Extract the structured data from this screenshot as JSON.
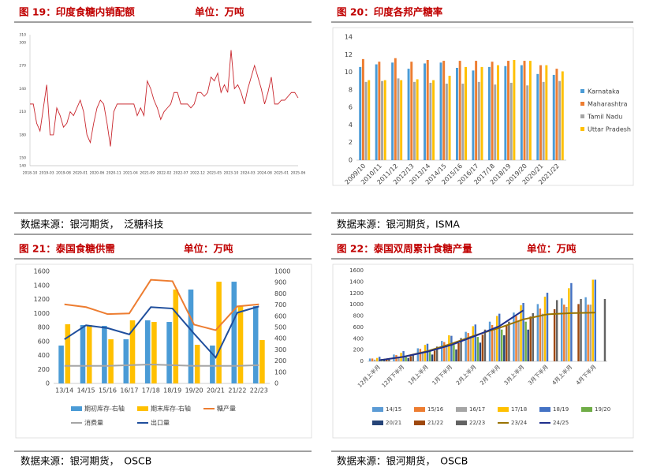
{
  "chart_data": [
    {
      "type": "line",
      "title": "图 19：印度食糖内销配额",
      "subtitle": "单位：万吨",
      "source": "数据来源：银河期货，　泛糖科技",
      "color": "#c9272e",
      "categories": [
        "2018-10",
        null,
        null,
        null,
        null,
        "2019-03",
        null,
        null,
        null,
        null,
        "2019-08",
        null,
        null,
        null,
        null,
        "2020-01",
        null,
        null,
        null,
        null,
        "2020-06",
        null,
        null,
        null,
        null,
        "2020-11",
        null,
        null,
        null,
        null,
        "2021-04",
        null,
        null,
        null,
        null,
        "2021-09",
        null,
        null,
        null,
        null,
        "2022-02",
        null,
        null,
        null,
        null,
        "2022-07",
        null,
        null,
        null,
        null,
        "2022-12",
        null,
        null,
        null,
        null,
        "2023-05",
        null,
        null,
        null,
        null,
        "2023-10",
        null,
        null,
        null,
        null,
        "2024-03",
        null,
        null,
        null,
        null,
        "2024-08",
        null,
        null,
        null,
        null,
        "2025-01",
        null,
        null,
        null,
        null,
        "2025-06"
      ],
      "values": [
        220,
        220,
        195,
        185,
        215,
        245,
        180,
        180,
        215,
        205,
        190,
        195,
        210,
        205,
        215,
        225,
        210,
        180,
        170,
        195,
        215,
        225,
        220,
        195,
        165,
        210,
        220,
        220,
        220,
        220,
        220,
        220,
        205,
        215,
        205,
        250,
        240,
        225,
        215,
        200,
        210,
        215,
        220,
        235,
        235,
        220,
        220,
        220,
        215,
        220,
        235,
        235,
        230,
        235,
        255,
        250,
        260,
        235,
        245,
        235,
        290,
        240,
        245,
        235,
        220,
        240,
        255,
        270,
        255,
        240,
        220,
        235,
        255,
        220,
        220,
        225,
        225,
        230,
        235,
        235,
        228
      ],
      "ylim": [
        140,
        310
      ],
      "yticks": [
        140,
        150,
        180,
        210,
        240,
        270,
        300,
        310
      ]
    },
    {
      "type": "bar",
      "title": "图 20：印度各邦产糖率",
      "source": "数据来源：银河期货，ISMA",
      "legend": "right",
      "categories": [
        "2009/10",
        "2010/11",
        "2011/12",
        "2012/13",
        "2013/14",
        "2014/15",
        "2015/16",
        "2016/17",
        "2017/18",
        "2018/19",
        "2019/20",
        "2020/21",
        "2021/22"
      ],
      "series": [
        {
          "name": "Karnataka",
          "color": "#4a9bd6",
          "values": [
            10.6,
            10.9,
            11.1,
            10.4,
            11.0,
            11.1,
            10.5,
            10.2,
            10.6,
            10.7,
            10.8,
            9.8,
            9.7
          ]
        },
        {
          "name": "Maharashtra",
          "color": "#ed7d31",
          "values": [
            11.5,
            11.2,
            11.6,
            11.2,
            11.4,
            11.3,
            11.3,
            11.3,
            11.2,
            11.3,
            11.3,
            10.8,
            10.4
          ]
        },
        {
          "name": "Tamil Nadu",
          "color": "#a5a5a5",
          "values": [
            8.9,
            9.0,
            9.3,
            8.9,
            8.8,
            8.7,
            8.7,
            8.9,
            8.6,
            8.8,
            8.5,
            8.9,
            9.0
          ]
        },
        {
          "name": "Uttar Pradesh",
          "color": "#ffc000",
          "values": [
            9.1,
            9.1,
            9.1,
            9.2,
            9.1,
            9.6,
            10.6,
            10.6,
            10.8,
            11.4,
            11.3,
            10.8,
            10.1
          ]
        }
      ],
      "ylim": [
        0,
        14
      ],
      "yticks": [
        0,
        2,
        4,
        6,
        8,
        10,
        12,
        14
      ]
    },
    {
      "type": "combo",
      "title": "图 21：泰国食糖供需",
      "subtitle": "单位：万吨",
      "source": "数据来源：银河期货，　OSCB",
      "legend": "bottom",
      "categories": [
        "13/14",
        "14/15",
        "15/16",
        "16/17",
        "17/18",
        "18/19",
        "19/20",
        "20/21",
        "21/22",
        "22/23"
      ],
      "series": [
        {
          "name": "期初库存-右轴",
          "type": "bar",
          "axis": "y2",
          "color": "#4a9bd6",
          "values": [
            338,
            521,
            514,
            394,
            563,
            549,
            838,
            338,
            908,
            690
          ]
        },
        {
          "name": "期末库存-右轴",
          "type": "bar",
          "axis": "y2",
          "color": "#ffc000",
          "values": [
            528,
            521,
            394,
            563,
            549,
            838,
            345,
            908,
            690,
            387
          ]
        },
        {
          "name": "糖产量",
          "type": "line",
          "color": "#ed7d31",
          "values": [
            1130,
            1090,
            990,
            1000,
            1480,
            1460,
            840,
            760,
            1100,
            1130
          ]
        },
        {
          "name": "消费量",
          "type": "line",
          "color": "#a5a5a5",
          "values": [
            250,
            250,
            250,
            260,
            270,
            260,
            250,
            250,
            250,
            260
          ]
        },
        {
          "name": "出口量",
          "type": "line",
          "color": "#1f4e9c",
          "values": [
            630,
            830,
            790,
            700,
            1090,
            1070,
            710,
            370,
            1010,
            1100
          ]
        }
      ],
      "ylim": [
        0,
        1600
      ],
      "yticks": [
        0,
        200,
        400,
        600,
        800,
        1000,
        1200,
        1400,
        1600
      ],
      "y2lim": [
        0,
        1000
      ],
      "y2ticks": [
        0,
        100,
        200,
        300,
        400,
        500,
        600,
        700,
        800,
        900,
        1000
      ]
    },
    {
      "type": "combo",
      "title": "图 22：泰国双周累计食糖产量",
      "subtitle": "单位：万吨",
      "source": "数据来源：银河期货，　OSCB",
      "legend": "bottom",
      "categories": [
        "12月上半月",
        "12月下半月",
        "1月上半月",
        "1月下半月",
        "2月上半月",
        "2月下半月",
        "3月上半月",
        "3月下半月",
        "4月上半月",
        "4月下半月"
      ],
      "series": [
        {
          "name": "14/15",
          "type": "bar",
          "color": "#5b9bd5",
          "values": [
            50,
            120,
            230,
            360,
            520,
            700,
            860,
            1010,
            1110,
            1130
          ]
        },
        {
          "name": "15/16",
          "type": "bar",
          "color": "#ed7d31",
          "values": [
            50,
            110,
            220,
            340,
            500,
            640,
            800,
            930,
            1000,
            1000
          ]
        },
        {
          "name": "16/17",
          "type": "bar",
          "color": "#a5a5a5",
          "values": [
            30,
            80,
            170,
            280,
            420,
            560,
            700,
            840,
            960,
            1000
          ]
        },
        {
          "name": "17/18",
          "type": "bar",
          "color": "#ffc000",
          "values": [
            60,
            150,
            290,
            460,
            620,
            800,
            990,
            1140,
            1290,
            1440
          ]
        },
        {
          "name": "18/19",
          "type": "bar",
          "color": "#4472c4",
          "values": [
            80,
            180,
            310,
            450,
            650,
            840,
            1030,
            1210,
            1380,
            1440
          ]
        },
        {
          "name": "19/20",
          "type": "bar",
          "color": "#70ad47",
          "values": [
            40,
            100,
            190,
            290,
            430,
            560,
            700,
            null,
            null,
            null
          ]
        },
        {
          "name": "20/21",
          "type": "bar",
          "color": "#264478",
          "values": [
            20,
            60,
            120,
            210,
            330,
            460,
            560,
            null,
            null,
            null
          ]
        },
        {
          "name": "21/22",
          "type": "bar",
          "color": "#9e480e",
          "values": [
            30,
            90,
            190,
            320,
            470,
            630,
            790,
            920,
            1010,
            null
          ]
        },
        {
          "name": "22/23",
          "type": "bar",
          "color": "#636363",
          "values": [
            50,
            130,
            260,
            410,
            560,
            700,
            850,
            1080,
            1100,
            1100
          ]
        },
        {
          "name": "23/24",
          "type": "line",
          "color": "#997300",
          "values": [
            20,
            80,
            180,
            310,
            460,
            590,
            740,
            830,
            850,
            860
          ]
        },
        {
          "name": "24/25",
          "type": "line",
          "color": "#1f2f8c",
          "values": [
            20,
            80,
            170,
            290,
            450,
            620,
            900,
            null,
            null,
            null
          ]
        }
      ],
      "ylim": [
        0,
        1600
      ],
      "yticks": [
        0,
        200,
        400,
        600,
        800,
        1000,
        1200,
        1400,
        1600
      ]
    }
  ]
}
